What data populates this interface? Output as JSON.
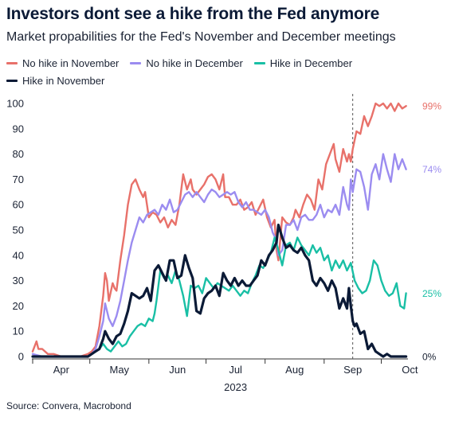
{
  "title": "Investors dont see a hike from the Fed anymore",
  "subtitle": "Market propabilities for the Fed's November and December meetings",
  "source": "Source: Convera, Macrobond",
  "colors": {
    "no_hike_nov": "#e8716a",
    "no_hike_dec": "#9b8cf0",
    "hike_dec": "#19bfa5",
    "hike_nov": "#0b1a36",
    "axis": "#333333",
    "marker_line": "#555555"
  },
  "legend": [
    {
      "label": "No hike in November",
      "color": "#e8716a"
    },
    {
      "label": "No hike in December",
      "color": "#9b8cf0"
    },
    {
      "label": "Hike in December",
      "color": "#19bfa5"
    },
    {
      "label": "Hike in November",
      "color": "#0b1a36"
    }
  ],
  "chart_data": {
    "type": "line",
    "xlabel": "2023",
    "ylabel": "",
    "ylim": [
      0,
      100
    ],
    "yticks": [
      0,
      10,
      20,
      30,
      40,
      50,
      60,
      70,
      80,
      90,
      100
    ],
    "xticks": [
      "Apr",
      "May",
      "Jun",
      "Jul",
      "Aug",
      "Sep",
      "Oct"
    ],
    "xrange_days": [
      0,
      197
    ],
    "month_start_days": [
      0,
      30,
      61,
      91,
      122,
      153,
      183
    ],
    "vertical_marker_day": 168,
    "grid": false,
    "legend_position": "top",
    "end_labels": [
      {
        "series": "No hike in November",
        "text": "99%"
      },
      {
        "series": "No hike in December",
        "text": "74%"
      },
      {
        "series": "Hike in December",
        "text": "25%"
      },
      {
        "series": "Hike in November",
        "text": "0%"
      }
    ],
    "series": [
      {
        "name": "No hike in November",
        "color": "#e8716a",
        "x": [
          0,
          2,
          3,
          5,
          8,
          11,
          15,
          20,
          25,
          29,
          31,
          33,
          35,
          37,
          38,
          39,
          40,
          42,
          43,
          44,
          46,
          48,
          50,
          52,
          54,
          56,
          58,
          59,
          61,
          63,
          65,
          67,
          69,
          71,
          73,
          75,
          77,
          79,
          81,
          83,
          84,
          86,
          88,
          90,
          92,
          94,
          96,
          98,
          100,
          101,
          103,
          105,
          107,
          109,
          111,
          113,
          115,
          117,
          119,
          121,
          123,
          125,
          127,
          128,
          129,
          131,
          133,
          135,
          137,
          138,
          140,
          142,
          144,
          146,
          148,
          150,
          152,
          154,
          156,
          158,
          159,
          161,
          163,
          165,
          166,
          167,
          168,
          170,
          172,
          174,
          176,
          178,
          180,
          182,
          184,
          186,
          188,
          190,
          192,
          194,
          196
        ],
        "y": [
          2,
          6,
          3,
          3,
          1,
          1,
          0,
          0,
          0,
          1,
          2,
          4,
          12,
          24,
          33,
          30,
          22,
          29,
          27,
          26,
          38,
          48,
          60,
          68,
          70,
          66,
          63,
          65,
          55,
          57,
          56,
          53,
          55,
          51,
          54,
          52,
          60,
          72,
          66,
          70,
          66,
          64,
          66,
          68,
          71,
          72,
          70,
          66,
          72,
          63,
          63,
          60,
          60,
          62,
          58,
          59,
          61,
          56,
          59,
          62,
          55,
          51,
          54,
          42,
          38,
          55,
          53,
          52,
          55,
          58,
          55,
          60,
          64,
          62,
          58,
          70,
          66,
          76,
          80,
          84,
          78,
          73,
          82,
          77,
          80,
          77,
          82,
          89,
          88,
          95,
          91,
          95,
          100,
          99,
          100,
          98,
          100,
          97,
          100,
          98,
          99
        ]
      },
      {
        "name": "No hike in December",
        "color": "#9b8cf0",
        "x": [
          0,
          5,
          10,
          15,
          20,
          25,
          29,
          31,
          33,
          35,
          37,
          38,
          40,
          42,
          44,
          46,
          48,
          50,
          52,
          54,
          56,
          58,
          60,
          62,
          64,
          66,
          68,
          70,
          72,
          74,
          76,
          78,
          80,
          82,
          84,
          86,
          88,
          90,
          92,
          94,
          96,
          98,
          100,
          102,
          104,
          106,
          108,
          110,
          112,
          114,
          116,
          118,
          120,
          122,
          124,
          126,
          128,
          129,
          131,
          133,
          135,
          137,
          139,
          141,
          143,
          145,
          147,
          149,
          151,
          153,
          155,
          157,
          159,
          161,
          163,
          165,
          166,
          167,
          168,
          170,
          172,
          174,
          176,
          178,
          180,
          182,
          184,
          186,
          188,
          190,
          192,
          194,
          196
        ],
        "y": [
          1,
          0,
          0,
          0,
          0,
          0,
          0,
          1,
          3,
          8,
          14,
          21,
          15,
          12,
          16,
          22,
          30,
          38,
          45,
          50,
          55,
          53,
          56,
          57,
          58,
          56,
          60,
          58,
          62,
          57,
          58,
          61,
          64,
          65,
          63,
          65,
          63,
          61,
          64,
          66,
          65,
          63,
          64,
          65,
          64,
          65,
          61,
          59,
          61,
          58,
          58,
          57,
          56,
          58,
          55,
          49,
          46,
          40,
          42,
          52,
          52,
          54,
          50,
          55,
          56,
          54,
          54,
          56,
          60,
          55,
          58,
          57,
          60,
          56,
          67,
          60,
          58,
          70,
          65,
          74,
          73,
          67,
          58,
          72,
          76,
          70,
          80,
          74,
          69,
          80,
          74,
          78,
          74
        ]
      },
      {
        "name": "Hike in December",
        "color": "#19bfa5",
        "x": [
          0,
          5,
          10,
          15,
          20,
          25,
          29,
          31,
          33,
          35,
          37,
          39,
          41,
          43,
          45,
          47,
          49,
          51,
          53,
          55,
          57,
          59,
          61,
          63,
          64,
          65,
          67,
          69,
          71,
          73,
          75,
          77,
          79,
          81,
          83,
          85,
          87,
          89,
          91,
          93,
          95,
          97,
          99,
          101,
          103,
          105,
          107,
          109,
          111,
          113,
          115,
          117,
          119,
          121,
          123,
          125,
          127,
          129,
          131,
          133,
          135,
          137,
          139,
          141,
          143,
          145,
          147,
          149,
          151,
          153,
          155,
          157,
          159,
          161,
          163,
          165,
          167,
          169,
          171,
          173,
          175,
          177,
          179,
          181,
          183,
          185,
          187,
          189,
          191,
          193,
          195,
          196
        ],
        "y": [
          0,
          0,
          0,
          0,
          0,
          0,
          0,
          1,
          2,
          3,
          5,
          3,
          2,
          4,
          6,
          4,
          5,
          8,
          10,
          12,
          13,
          12,
          15,
          14,
          17,
          22,
          34,
          31,
          32,
          29,
          34,
          30,
          24,
          16,
          28,
          27,
          28,
          25,
          31,
          29,
          27,
          29,
          28,
          27,
          26,
          28,
          26,
          24,
          26,
          25,
          29,
          32,
          36,
          35,
          38,
          41,
          47,
          42,
          36,
          44,
          45,
          42,
          47,
          44,
          42,
          40,
          44,
          41,
          43,
          38,
          40,
          34,
          38,
          35,
          38,
          34,
          37,
          30,
          27,
          25,
          26,
          30,
          38,
          36,
          30,
          26,
          24,
          25,
          29,
          20,
          19,
          25
        ]
      },
      {
        "name": "Hike in November",
        "color": "#0b1a36",
        "x": [
          0,
          5,
          10,
          15,
          20,
          25,
          29,
          31,
          33,
          35,
          37,
          38,
          40,
          42,
          44,
          46,
          48,
          50,
          52,
          54,
          56,
          58,
          60,
          62,
          64,
          66,
          68,
          70,
          72,
          74,
          76,
          78,
          80,
          82,
          84,
          86,
          88,
          90,
          92,
          94,
          96,
          98,
          100,
          102,
          104,
          106,
          108,
          110,
          112,
          114,
          116,
          118,
          120,
          122,
          124,
          126,
          128,
          129,
          131,
          133,
          135,
          137,
          139,
          141,
          143,
          145,
          147,
          149,
          151,
          153,
          155,
          157,
          159,
          161,
          163,
          165,
          166,
          167,
          168,
          169,
          170,
          172,
          174,
          176,
          178,
          180,
          182,
          184,
          186,
          188,
          190,
          192,
          194,
          196
        ],
        "y": [
          0,
          0,
          0,
          0,
          0,
          0,
          0,
          1,
          2,
          3,
          7,
          10,
          7,
          5,
          8,
          9,
          13,
          18,
          25,
          24,
          23,
          24,
          27,
          22,
          34,
          36,
          33,
          30,
          38,
          38,
          31,
          32,
          40,
          35,
          31,
          18,
          17,
          23,
          25,
          26,
          28,
          24,
          33,
          30,
          28,
          31,
          28,
          30,
          28,
          28,
          30,
          32,
          38,
          36,
          40,
          42,
          45,
          52,
          47,
          43,
          44,
          42,
          41,
          43,
          40,
          38,
          30,
          28,
          31,
          29,
          26,
          30,
          27,
          19,
          23,
          19,
          27,
          20,
          14,
          12,
          13,
          9,
          10,
          3,
          5,
          2,
          1,
          0,
          1,
          0,
          0,
          0,
          0,
          0
        ]
      }
    ]
  }
}
